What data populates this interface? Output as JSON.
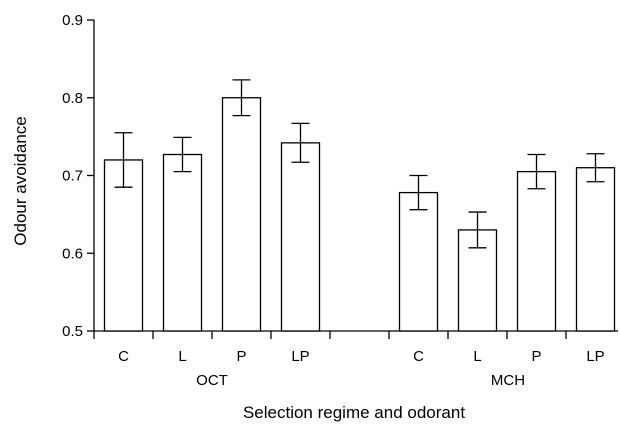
{
  "chart_data": {
    "type": "bar",
    "title": "",
    "xlabel": "Selection regime and odorant",
    "ylabel": "Odour avoidance",
    "ylim": [
      0.5,
      0.9
    ],
    "yticks": [
      "0.5",
      "0.6",
      "0.7",
      "0.8",
      "0.9"
    ],
    "groups": [
      {
        "name": "OCT",
        "categories": [
          "C",
          "L",
          "P",
          "LP"
        ],
        "values": [
          0.72,
          0.727,
          0.8,
          0.742
        ],
        "errors": [
          0.035,
          0.022,
          0.023,
          0.025
        ]
      },
      {
        "name": "MCH",
        "categories": [
          "C",
          "L",
          "P",
          "LP"
        ],
        "values": [
          0.678,
          0.63,
          0.705,
          0.71
        ],
        "errors": [
          0.022,
          0.023,
          0.022,
          0.018
        ]
      }
    ],
    "bar_fill": "#ffffff",
    "bar_stroke": "#000000",
    "grid": false,
    "legend": "none"
  }
}
